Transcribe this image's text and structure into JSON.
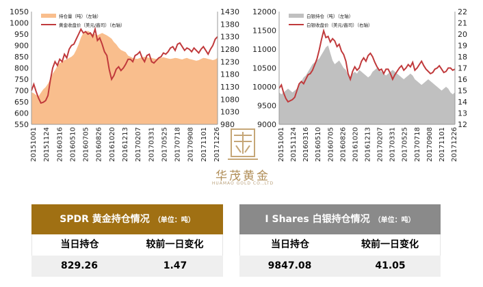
{
  "chart_data": [
    {
      "type": "area+line",
      "title": "",
      "x_ticks": [
        "20151001",
        "20151124",
        "20160316",
        "20160510",
        "20160705",
        "20160826",
        "20161020",
        "20161213",
        "20170207",
        "20170331",
        "20170525",
        "20170718",
        "20170908",
        "20171101",
        "20171226"
      ],
      "y_left_ticks": [
        "550",
        "600",
        "650",
        "700",
        "750",
        "800",
        "850",
        "900",
        "950",
        "1000",
        "1050"
      ],
      "y_right_ticks": [
        "980",
        "1030",
        "1080",
        "1130",
        "1180",
        "1230",
        "1280",
        "1330",
        "1380",
        "1430"
      ],
      "ylim_left": [
        550,
        1050
      ],
      "ylim_right": [
        980,
        1430
      ],
      "grid": false,
      "legend_position": "top-left",
      "series": [
        {
          "name": "持仓量（吨）（左轴）",
          "kind": "area",
          "axis": "left",
          "color": "#f9be8d",
          "values": [
            692,
            688,
            680,
            675,
            690,
            705,
            715,
            730,
            750,
            775,
            790,
            810,
            822,
            828,
            835,
            838,
            845,
            850,
            860,
            880,
            905,
            935,
            955,
            960,
            965,
            958,
            950,
            950,
            945,
            950,
            955,
            950,
            945,
            938,
            930,
            915,
            905,
            890,
            880,
            875,
            870,
            855,
            850,
            845,
            842,
            840,
            845,
            848,
            850,
            848,
            845,
            845,
            842,
            840,
            842,
            845,
            848,
            845,
            842,
            840,
            842,
            845,
            843,
            840,
            838,
            842,
            845,
            840,
            838,
            835,
            832,
            835,
            840,
            845,
            843,
            840,
            838,
            835,
            838,
            845
          ]
        },
        {
          "name": "黄金收盘价（美元/盎司）（右轴）",
          "kind": "line",
          "axis": "right",
          "color": "#c0393b",
          "values": [
            1115,
            1140,
            1110,
            1085,
            1065,
            1068,
            1075,
            1095,
            1155,
            1205,
            1230,
            1215,
            1240,
            1230,
            1260,
            1245,
            1280,
            1295,
            1300,
            1320,
            1340,
            1360,
            1345,
            1350,
            1340,
            1345,
            1330,
            1360,
            1315,
            1325,
            1300,
            1270,
            1255,
            1200,
            1160,
            1175,
            1200,
            1210,
            1195,
            1205,
            1220,
            1240,
            1240,
            1230,
            1255,
            1260,
            1270,
            1245,
            1230,
            1255,
            1260,
            1230,
            1225,
            1235,
            1245,
            1250,
            1265,
            1260,
            1270,
            1285,
            1290,
            1275,
            1300,
            1305,
            1290,
            1275,
            1285,
            1280,
            1270,
            1285,
            1275,
            1265,
            1280,
            1290,
            1275,
            1260,
            1280,
            1295,
            1320,
            1330
          ]
        }
      ]
    },
    {
      "type": "area+line",
      "title": "",
      "x_ticks": [
        "20151001",
        "20151124",
        "20160316",
        "20160510",
        "20160705",
        "20160826",
        "20161020",
        "20161213",
        "20170207",
        "20170331",
        "20170525",
        "20170718",
        "20170908",
        "20171101",
        "20171226"
      ],
      "y_left_ticks": [
        "9000",
        "9500",
        "10000",
        "10500",
        "11000",
        "11500",
        "12000"
      ],
      "y_right_ticks": [
        "12",
        "13",
        "14",
        "15",
        "16",
        "17",
        "18",
        "19",
        "20",
        "21",
        "22"
      ],
      "ylim_left": [
        9000,
        12000
      ],
      "ylim_right": [
        12,
        22
      ],
      "grid": false,
      "legend_position": "top-left",
      "series": [
        {
          "name": "白银持仓（吨）（左轴）",
          "kind": "area",
          "axis": "left",
          "color": "#c0c0c0",
          "values": [
            9850,
            9800,
            9850,
            9900,
            9950,
            9900,
            9850,
            9900,
            9950,
            10050,
            10150,
            10250,
            10300,
            10400,
            10500,
            10600,
            10650,
            10700,
            10750,
            10850,
            10950,
            11050,
            11100,
            10900,
            10700,
            10600,
            10650,
            10700,
            10600,
            10500,
            10450,
            10300,
            10250,
            10350,
            10400,
            10350,
            10450,
            10400,
            10350,
            10300,
            10250,
            10300,
            10400,
            10450,
            10500,
            10450,
            10400,
            10350,
            10300,
            10350,
            10400,
            10450,
            10400,
            10350,
            10300,
            10250,
            10200,
            10250,
            10300,
            10350,
            10300,
            10200,
            10150,
            10100,
            10050,
            10100,
            10150,
            10200,
            10150,
            10100,
            10050,
            10000,
            9950,
            9900,
            9950,
            10000,
            9950,
            9850,
            9800,
            9850
          ]
        },
        {
          "name": "白银收盘价（美元/盎司）（右轴）",
          "kind": "line",
          "axis": "right",
          "color": "#c0393b",
          "values": [
            15.2,
            15.5,
            14.8,
            14.3,
            14.0,
            14.1,
            14.2,
            14.4,
            15.0,
            15.6,
            15.8,
            15.6,
            16.0,
            16.4,
            16.5,
            16.8,
            17.3,
            17.8,
            18.6,
            19.5,
            20.3,
            19.7,
            19.8,
            19.3,
            19.6,
            19.4,
            18.9,
            19.1,
            18.5,
            18.2,
            17.6,
            16.5,
            16.0,
            16.7,
            17.1,
            16.8,
            17.0,
            17.6,
            17.9,
            17.6,
            18.1,
            18.3,
            18.0,
            17.5,
            17.1,
            16.8,
            16.9,
            16.5,
            16.9,
            16.9,
            16.5,
            16.0,
            16.4,
            16.7,
            17.0,
            17.2,
            16.8,
            17.0,
            17.3,
            17.1,
            17.5,
            16.8,
            17.0,
            17.3,
            17.6,
            17.2,
            16.9,
            16.7,
            16.5,
            16.6,
            16.9,
            17.0,
            17.2,
            16.9,
            16.6,
            16.7,
            17.0,
            17.0,
            16.8,
            16.9
          ]
        }
      ]
    }
  ],
  "logo": {
    "cn": "华茂黄金",
    "en": "HUAMAO GOLD CO.,LTD"
  },
  "gold_panel": {
    "title": "SPDR 黄金持仓情况",
    "unit": "（单位：吨）",
    "col1": "当日持仓",
    "col2": "较前一日变化",
    "holding": "829.26",
    "change": "1.47",
    "color": "#a07013"
  },
  "silver_panel": {
    "title": "I Shares 白银持仓情况",
    "unit": "（单位：吨）",
    "col1": "当日持仓",
    "col2": "较前一日变化",
    "holding": "9847.08",
    "change": "41.05",
    "color": "#8a8a8a"
  }
}
